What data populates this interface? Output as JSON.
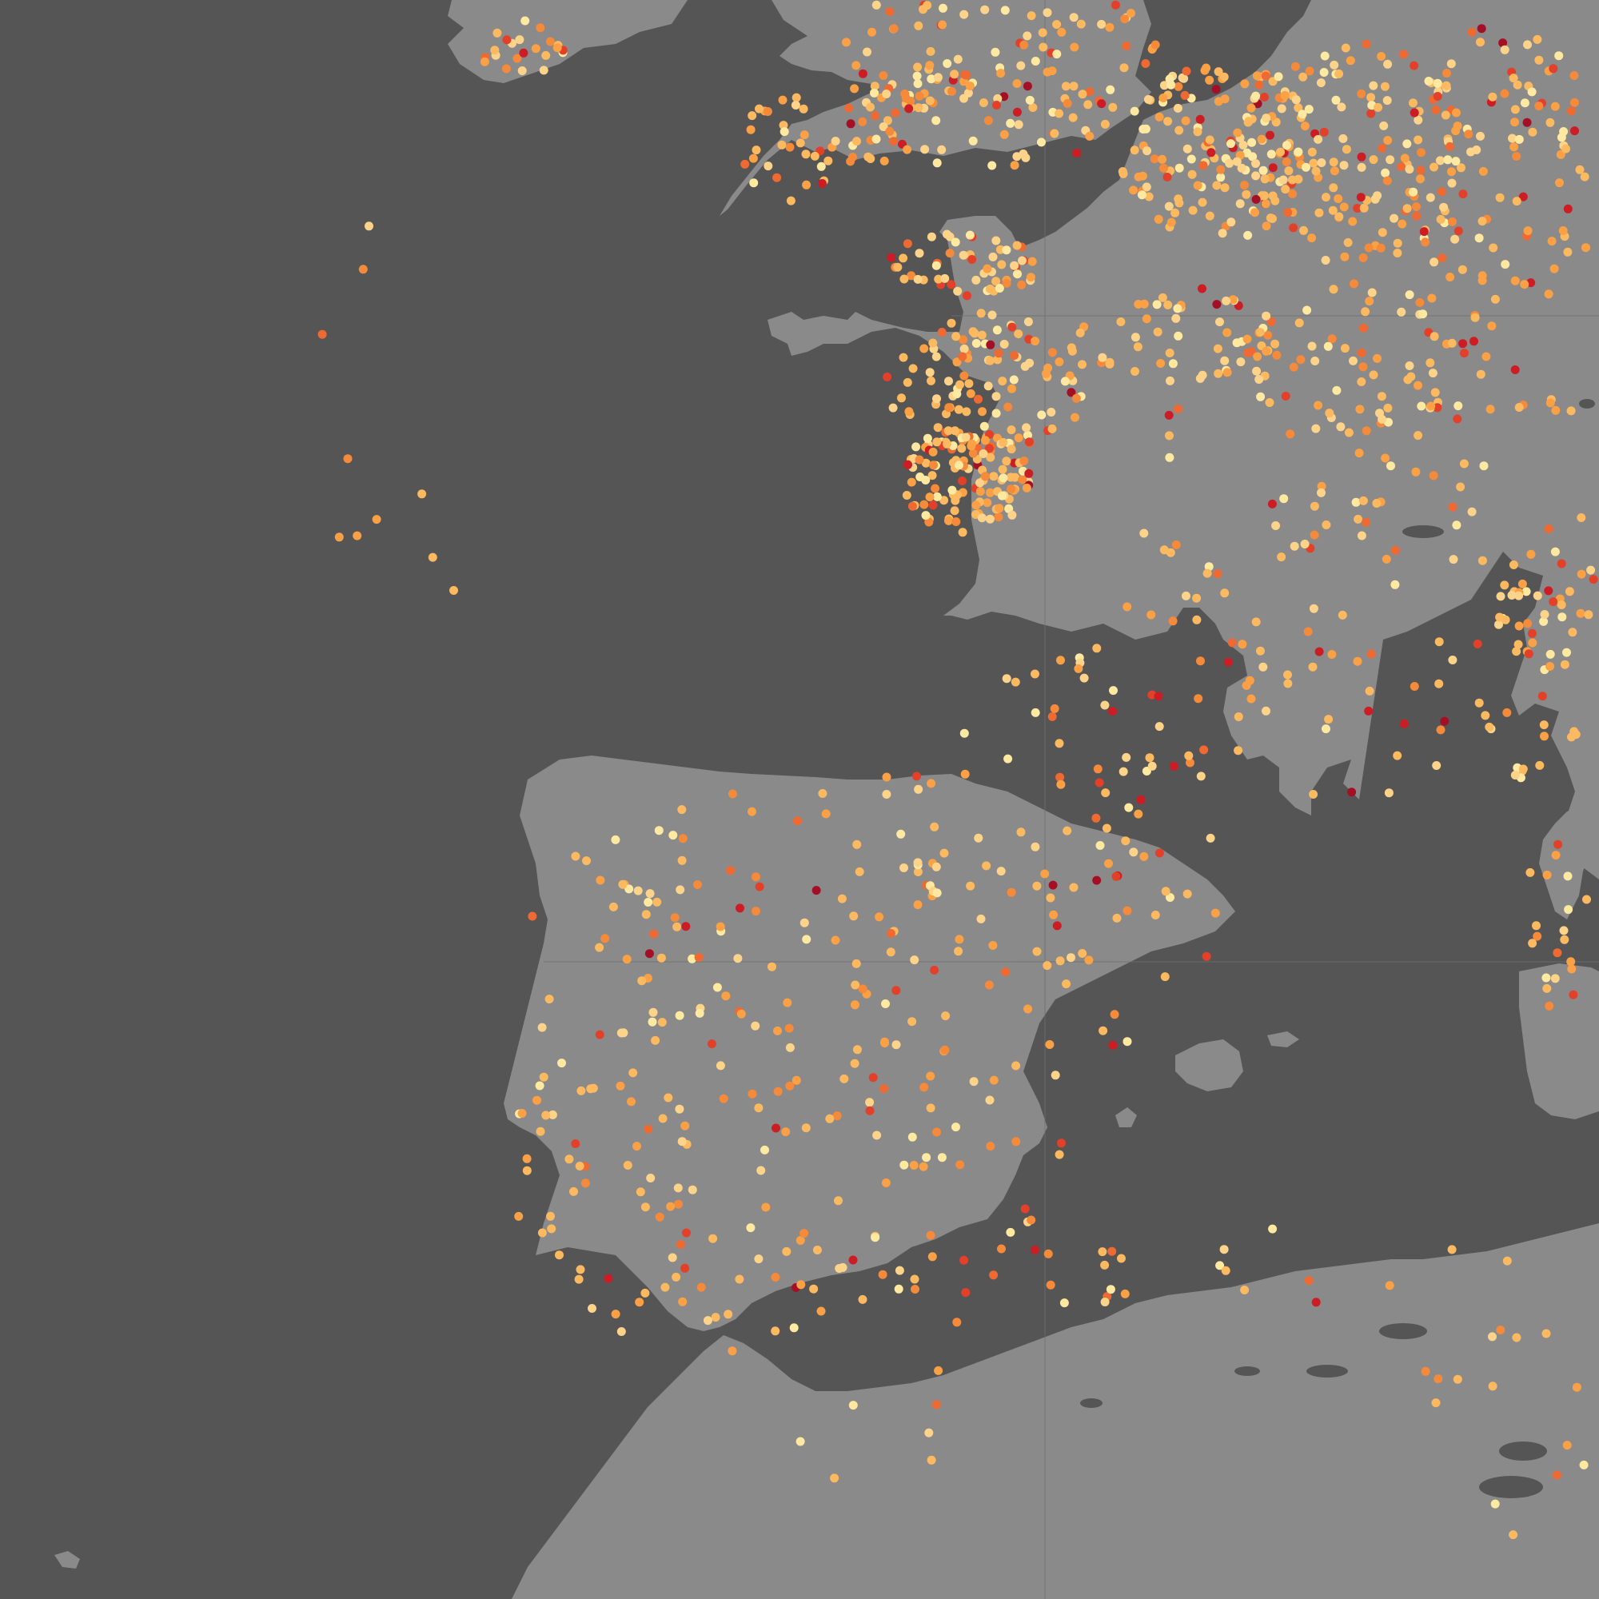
{
  "map": {
    "projection_grid": true,
    "colors": {
      "sea": "#555555",
      "land": "#8a8a8a",
      "inland_water": "#555555",
      "graticule": "#6e6e6e"
    },
    "marker_palette": [
      "#ffe9a0",
      "#fdd38a",
      "#fcb960",
      "#fba044",
      "#f58a3a",
      "#ef6a32",
      "#e3402a",
      "#cc1c24",
      "#a50f26"
    ],
    "marker_legend_visible": false
  }
}
